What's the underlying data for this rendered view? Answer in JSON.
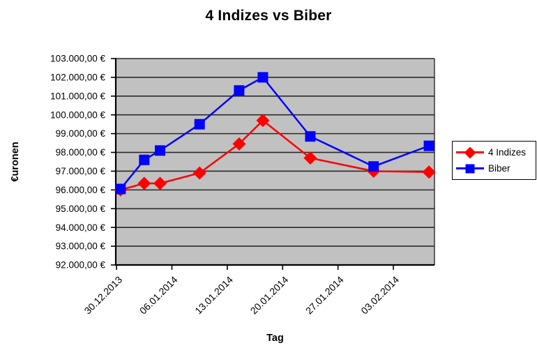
{
  "chart_data": {
    "type": "line",
    "title": "4 Indizes vs Biber",
    "xlabel": "Tag",
    "ylabel": "€uronen",
    "ylim": [
      92000,
      103000
    ],
    "y_tick_step": 1000,
    "grid": "horizontal",
    "plot_bg": "#c1c1c1",
    "legend_position": "right",
    "y_ticks": [
      {
        "value": 103000,
        "label": "103.000,00 €"
      },
      {
        "value": 102000,
        "label": "102.000,00 €"
      },
      {
        "value": 101000,
        "label": "101.000,00 €"
      },
      {
        "value": 100000,
        "label": "100.000,00 €"
      },
      {
        "value": 99000,
        "label": "99.000,00 €"
      },
      {
        "value": 98000,
        "label": "98.000,00 €"
      },
      {
        "value": 97000,
        "label": "97.000,00 €"
      },
      {
        "value": 96000,
        "label": "96.000,00 €"
      },
      {
        "value": 95000,
        "label": "95.000,00 €"
      },
      {
        "value": 94000,
        "label": "94.000,00 €"
      },
      {
        "value": 93000,
        "label": "93.000,00 €"
      },
      {
        "value": 92000,
        "label": "92.000,00 €"
      }
    ],
    "x_ticks": [
      {
        "day": 0,
        "label": "30.12.2013"
      },
      {
        "day": 7,
        "label": "06.01.2014"
      },
      {
        "day": 14,
        "label": "13.01.2014"
      },
      {
        "day": 21,
        "label": "20.01.2014"
      },
      {
        "day": 28,
        "label": "27.01.2014"
      },
      {
        "day": 35,
        "label": "03.02.2014"
      }
    ],
    "x_days_range": [
      -0.1,
      40.2
    ],
    "series": [
      {
        "name": "4 Indizes",
        "color": "#ff0000",
        "marker": "diamond",
        "days": [
          0.5,
          3.5,
          5.5,
          10.5,
          15.5,
          18.5,
          24.5,
          32.5,
          39.5
        ],
        "values": [
          96000,
          96350,
          96350,
          96900,
          98450,
          99700,
          97700,
          97000,
          96950
        ]
      },
      {
        "name": "Biber",
        "color": "#0000ff",
        "marker": "square",
        "days": [
          0.5,
          3.5,
          5.5,
          10.5,
          15.5,
          18.5,
          24.5,
          32.5,
          39.5
        ],
        "values": [
          96050,
          97600,
          98100,
          99500,
          101300,
          102000,
          98850,
          97250,
          98350
        ]
      }
    ]
  },
  "legend": {
    "items": [
      {
        "label": "4 Indizes",
        "color": "#ff0000",
        "marker": "diamond"
      },
      {
        "label": "Biber",
        "color": "#0000ff",
        "marker": "square"
      }
    ]
  }
}
